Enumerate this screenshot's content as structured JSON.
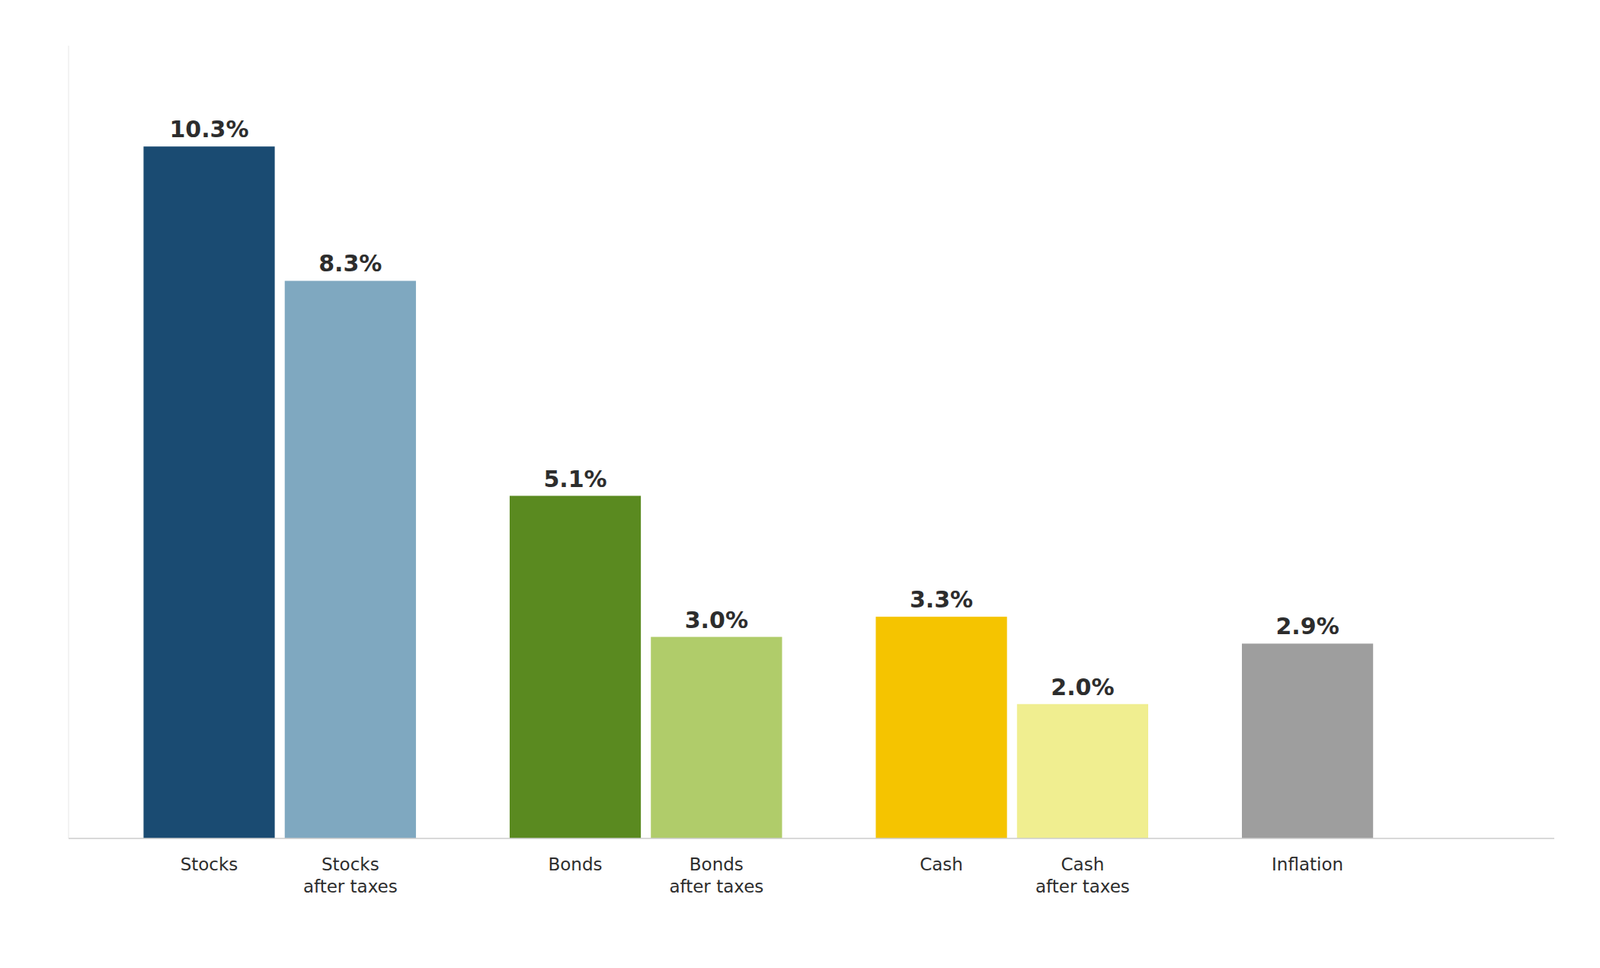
{
  "chart_data": {
    "type": "bar",
    "categories": [
      "Stocks",
      "Stocks\nafter taxes",
      "Bonds",
      "Bonds\nafter taxes",
      "Cash",
      "Cash\nafter taxes",
      "Inflation"
    ],
    "values": [
      10.3,
      8.3,
      5.1,
      3.0,
      3.3,
      2.0,
      2.9
    ],
    "value_labels": [
      "10.3%",
      "8.3%",
      "5.1%",
      "3.0%",
      "3.3%",
      "2.0%",
      "2.9%"
    ],
    "colors": [
      "#1a4b72",
      "#7fa8c0",
      "#5a8a20",
      "#b0cc6a",
      "#f5c400",
      "#f0ee90",
      "#9e9e9e"
    ],
    "ylim": [
      0,
      11.8
    ],
    "grid": false,
    "data_labels": true,
    "tick_labels": "x"
  }
}
